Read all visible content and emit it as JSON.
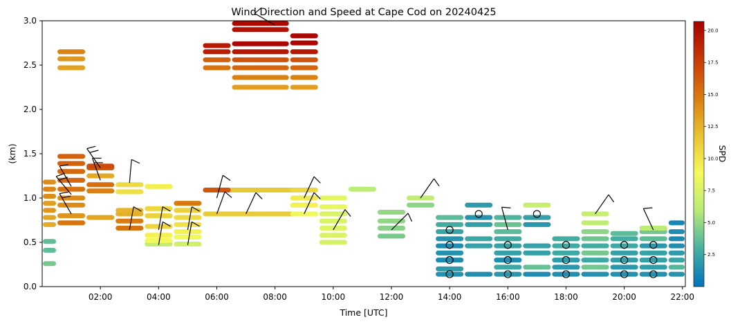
{
  "chart_data": {
    "type": "heatmap",
    "title": "Wind Direction and Speed at Cape Cod on 20240425",
    "xlabel": "Time [UTC]",
    "ylabel": "(km)",
    "colorbar_label": "SPD",
    "xlim_hours": [
      0,
      22.1
    ],
    "ylim": [
      0,
      3.0
    ],
    "x_ticks": [
      {
        "hour": 2,
        "label": "02:00"
      },
      {
        "hour": 4,
        "label": "04:00"
      },
      {
        "hour": 6,
        "label": "06:00"
      },
      {
        "hour": 8,
        "label": "08:00"
      },
      {
        "hour": 10,
        "label": "10:00"
      },
      {
        "hour": 12,
        "label": "12:00"
      },
      {
        "hour": 14,
        "label": "14:00"
      },
      {
        "hour": 16,
        "label": "16:00"
      },
      {
        "hour": 18,
        "label": "18:00"
      },
      {
        "hour": 20,
        "label": "20:00"
      },
      {
        "hour": 22,
        "label": "22:00"
      }
    ],
    "y_ticks": [
      {
        "value": 0.0,
        "label": "0.0"
      },
      {
        "value": 0.5,
        "label": "0.5"
      },
      {
        "value": 1.0,
        "label": "1.0"
      },
      {
        "value": 1.5,
        "label": "1.5"
      },
      {
        "value": 2.0,
        "label": "2.0"
      },
      {
        "value": 2.5,
        "label": "2.5"
      },
      {
        "value": 3.0,
        "label": "3.0"
      }
    ],
    "colorbar": {
      "min": 0,
      "max": 20.7,
      "colormap": [
        "#0072bd",
        "#47b0a0",
        "#b8ea78",
        "#f5f95a",
        "#e8c230",
        "#d97a10",
        "#c83a08",
        "#a80000"
      ],
      "ticks": [
        {
          "value": 2.5,
          "label": "2.5"
        },
        {
          "value": 5.0,
          "label": "5.0"
        },
        {
          "value": 7.5,
          "label": "7.5"
        },
        {
          "value": 10.0,
          "label": "10.0"
        },
        {
          "value": 12.5,
          "label": "12.5"
        },
        {
          "value": 15.0,
          "label": "15.0"
        },
        {
          "value": 17.5,
          "label": "17.5"
        },
        {
          "value": 20.0,
          "label": "20.0"
        }
      ]
    },
    "speed_columns": [
      {
        "x0": 0.0,
        "x1": 0.5,
        "cells": [
          [
            0.26,
            4.2
          ],
          [
            0.41,
            3.6
          ],
          [
            0.51,
            3.6
          ]
        ]
      },
      {
        "x0": 0.0,
        "x1": 0.5,
        "cells": [
          [
            0.7,
            12.7
          ],
          [
            0.78,
            13.0
          ],
          [
            0.86,
            13.6
          ],
          [
            0.94,
            13.3
          ],
          [
            1.02,
            14.0
          ],
          [
            1.1,
            14.3
          ],
          [
            1.18,
            14.0
          ]
        ]
      },
      {
        "x0": 0.5,
        "x1": 1.5,
        "cells": [
          [
            2.47,
            13.1
          ],
          [
            2.57,
            13.6
          ],
          [
            2.65,
            14.4
          ]
        ]
      },
      {
        "x0": 0.5,
        "x1": 1.5,
        "cells": [
          [
            0.72,
            15.0
          ],
          [
            0.8,
            13.7
          ],
          [
            0.92,
            14.0
          ],
          [
            1.0,
            14.1
          ],
          [
            1.1,
            15.2
          ],
          [
            1.2,
            15.6
          ],
          [
            1.3,
            15.5
          ],
          [
            1.39,
            15.9
          ],
          [
            1.47,
            16.0
          ]
        ]
      },
      {
        "x0": 1.5,
        "x1": 2.5,
        "cells": [
          [
            0.78,
            13.0
          ],
          [
            1.08,
            14.6
          ],
          [
            1.15,
            15.3
          ],
          [
            1.25,
            12.9
          ],
          [
            1.34,
            16.3
          ],
          [
            1.36,
            16.9
          ]
        ]
      },
      {
        "x0": 2.5,
        "x1": 3.5,
        "cells": [
          [
            0.66,
            15.1
          ],
          [
            0.74,
            14.7
          ],
          [
            0.82,
            12.6
          ],
          [
            0.86,
            12.4
          ],
          [
            1.07,
            10.2
          ],
          [
            1.15,
            10.5
          ]
        ]
      },
      {
        "x0": 3.5,
        "x1": 4.5,
        "cells": [
          [
            0.48,
            6.4
          ],
          [
            0.52,
            8.7
          ],
          [
            0.58,
            9.3
          ],
          [
            0.68,
            10.8
          ],
          [
            0.8,
            10.9
          ],
          [
            0.88,
            10.7
          ],
          [
            1.13,
            9.4
          ]
        ]
      },
      {
        "x0": 4.5,
        "x1": 5.5,
        "cells": [
          [
            0.48,
            7.1
          ],
          [
            0.56,
            8.7
          ],
          [
            0.62,
            9.3
          ],
          [
            0.7,
            10.1
          ],
          [
            0.78,
            10.5
          ],
          [
            0.86,
            11.0
          ],
          [
            0.94,
            14.8
          ]
        ]
      },
      {
        "x0": 5.5,
        "x1": 6.5,
        "cells": [
          [
            2.47,
            15.0
          ],
          [
            2.56,
            16.0
          ],
          [
            2.65,
            19.1
          ],
          [
            2.72,
            19.4
          ]
        ]
      },
      {
        "x0": 6.5,
        "x1": 8.5,
        "cells": [
          [
            2.47,
            15.7
          ],
          [
            2.56,
            16.6
          ],
          [
            2.65,
            19.5
          ],
          [
            2.74,
            20.4
          ],
          [
            2.36,
            14.5
          ],
          [
            2.25,
            13.3
          ],
          [
            2.97,
            20.3
          ],
          [
            2.9,
            19.8
          ]
        ]
      },
      {
        "x0": 8.5,
        "x1": 9.5,
        "cells": [
          [
            2.25,
            13.3
          ],
          [
            2.36,
            14.5
          ],
          [
            2.47,
            15.7
          ],
          [
            2.56,
            16.6
          ],
          [
            2.65,
            19.5
          ],
          [
            2.75,
            20.4
          ],
          [
            2.83,
            20.4
          ]
        ]
      },
      {
        "x0": 5.5,
        "x1": 9.5,
        "cells": [
          [
            0.82,
            11.3
          ],
          [
            1.09,
            11.5
          ]
        ]
      },
      {
        "x0": 5.5,
        "x1": 6.5,
        "cells": [
          [
            1.09,
            16.5
          ]
        ]
      },
      {
        "x0": 8.5,
        "x1": 9.5,
        "cells": [
          [
            0.82,
            8.7
          ],
          [
            0.92,
            9.3
          ],
          [
            1.0,
            9.6
          ],
          [
            1.09,
            10.7
          ]
        ]
      },
      {
        "x0": 9.5,
        "x1": 10.5,
        "cells": [
          [
            0.5,
            7.3
          ],
          [
            0.58,
            7.5
          ],
          [
            0.66,
            7.8
          ],
          [
            0.74,
            7.6
          ],
          [
            0.82,
            7.6
          ],
          [
            0.9,
            8.3
          ],
          [
            1.0,
            8.1
          ]
        ]
      },
      {
        "x0": 10.5,
        "x1": 11.5,
        "cells": [
          [
            1.1,
            6.1
          ]
        ]
      },
      {
        "x0": 11.5,
        "x1": 12.5,
        "cells": [
          [
            0.57,
            4.3
          ],
          [
            0.66,
            4.7
          ],
          [
            0.74,
            4.9
          ],
          [
            0.84,
            5.0
          ]
        ]
      },
      {
        "x0": 12.5,
        "x1": 13.5,
        "cells": [
          [
            0.92,
            4.8
          ],
          [
            1.0,
            6.4
          ]
        ]
      },
      {
        "x0": 13.5,
        "x1": 14.5,
        "cells": [
          [
            0.14,
            1.5
          ],
          [
            0.2,
            1.9
          ],
          [
            0.3,
            1.2
          ],
          [
            0.38,
            1.5
          ],
          [
            0.46,
            1.3
          ],
          [
            0.54,
            1.6
          ],
          [
            0.62,
            2.4
          ],
          [
            0.7,
            2.8
          ],
          [
            0.78,
            3.5
          ]
        ]
      },
      {
        "x0": 14.5,
        "x1": 15.5,
        "cells": [
          [
            0.14,
            1.4
          ],
          [
            0.46,
            2.2
          ],
          [
            0.54,
            2.5
          ],
          [
            0.7,
            2.1
          ],
          [
            0.78,
            1.6
          ],
          [
            0.92,
            1.9
          ]
        ]
      },
      {
        "x0": 15.5,
        "x1": 16.5,
        "cells": [
          [
            0.14,
            1.7
          ],
          [
            0.22,
            2.6
          ],
          [
            0.3,
            1.3
          ],
          [
            0.38,
            2.2
          ],
          [
            0.46,
            2.3
          ],
          [
            0.54,
            2.7
          ],
          [
            0.62,
            3.5
          ],
          [
            0.7,
            3.9
          ],
          [
            0.78,
            3.2
          ]
        ]
      },
      {
        "x0": 16.5,
        "x1": 17.5,
        "cells": [
          [
            0.14,
            1.3
          ],
          [
            0.22,
            3.8
          ],
          [
            0.38,
            2.2
          ],
          [
            0.46,
            2.2
          ],
          [
            0.7,
            1.7
          ],
          [
            0.78,
            2.2
          ],
          [
            0.92,
            6.7
          ]
        ]
      },
      {
        "x0": 17.5,
        "x1": 18.5,
        "cells": [
          [
            0.14,
            1.4
          ],
          [
            0.22,
            1.8
          ],
          [
            0.3,
            2.0
          ],
          [
            0.38,
            2.6
          ],
          [
            0.46,
            2.7
          ],
          [
            0.54,
            2.8
          ]
        ]
      },
      {
        "x0": 18.5,
        "x1": 19.5,
        "cells": [
          [
            0.14,
            1.5
          ],
          [
            0.22,
            4.1
          ],
          [
            0.3,
            2.6
          ],
          [
            0.38,
            4.2
          ],
          [
            0.46,
            2.8
          ],
          [
            0.54,
            4.0
          ],
          [
            0.62,
            4.8
          ],
          [
            0.72,
            6.4
          ],
          [
            0.82,
            6.7
          ]
        ]
      },
      {
        "x0": 19.5,
        "x1": 20.5,
        "cells": [
          [
            0.14,
            1.5
          ],
          [
            0.22,
            1.8
          ],
          [
            0.3,
            2.1
          ],
          [
            0.38,
            2.2
          ],
          [
            0.46,
            2.6
          ],
          [
            0.54,
            2.8
          ],
          [
            0.6,
            3.5
          ]
        ]
      },
      {
        "x0": 20.5,
        "x1": 21.5,
        "cells": [
          [
            0.14,
            1.5
          ],
          [
            0.22,
            2.1
          ],
          [
            0.3,
            2.2
          ],
          [
            0.38,
            2.3
          ],
          [
            0.46,
            1.8
          ],
          [
            0.54,
            3.5
          ],
          [
            0.62,
            4.1
          ],
          [
            0.66,
            6.1
          ]
        ]
      },
      {
        "x0": 21.5,
        "x1": 22.1,
        "cells": [
          [
            0.14,
            1.6
          ],
          [
            0.22,
            3.3
          ],
          [
            0.3,
            2.4
          ],
          [
            0.38,
            1.9
          ],
          [
            0.46,
            1.4
          ],
          [
            0.54,
            1.2
          ],
          [
            0.62,
            1.3
          ],
          [
            0.72,
            1.0
          ]
        ]
      }
    ],
    "calm_markers": [
      {
        "hour": 14,
        "alt": 0.14
      },
      {
        "hour": 14,
        "alt": 0.3
      },
      {
        "hour": 14,
        "alt": 0.47
      },
      {
        "hour": 14,
        "alt": 0.64
      },
      {
        "hour": 15,
        "alt": 0.82
      },
      {
        "hour": 16,
        "alt": 0.14
      },
      {
        "hour": 16,
        "alt": 0.3
      },
      {
        "hour": 16,
        "alt": 0.47
      },
      {
        "hour": 17,
        "alt": 0.82
      },
      {
        "hour": 18,
        "alt": 0.14
      },
      {
        "hour": 18,
        "alt": 0.3
      },
      {
        "hour": 18,
        "alt": 0.47
      },
      {
        "hour": 20,
        "alt": 0.14
      },
      {
        "hour": 20,
        "alt": 0.3
      },
      {
        "hour": 20,
        "alt": 0.47
      },
      {
        "hour": 21,
        "alt": 0.14
      },
      {
        "hour": 21,
        "alt": 0.3
      },
      {
        "hour": 21,
        "alt": 0.47
      }
    ],
    "wind_barbs": [
      {
        "hour": 1.0,
        "alt": 0.82,
        "dir_deg": 330,
        "barbs": 2
      },
      {
        "hour": 1.0,
        "alt": 1.04,
        "dir_deg": 320,
        "barbs": 2
      },
      {
        "hour": 1.0,
        "alt": 1.13,
        "dir_deg": 330,
        "barbs": 1
      },
      {
        "hour": 2.0,
        "alt": 1.34,
        "dir_deg": 325,
        "barbs": 2
      },
      {
        "hour": 2.0,
        "alt": 1.2,
        "dir_deg": 340,
        "barbs": 2
      },
      {
        "hour": 3.0,
        "alt": 1.17,
        "dir_deg": 5,
        "barbs": 1
      },
      {
        "hour": 3.0,
        "alt": 0.64,
        "dir_deg": 10,
        "barbs": 1
      },
      {
        "hour": 4.0,
        "alt": 0.47,
        "dir_deg": 10,
        "barbs": 1
      },
      {
        "hour": 4.0,
        "alt": 0.64,
        "dir_deg": 10,
        "barbs": 1
      },
      {
        "hour": 5.0,
        "alt": 0.47,
        "dir_deg": 10,
        "barbs": 1
      },
      {
        "hour": 5.0,
        "alt": 0.64,
        "dir_deg": 10,
        "barbs": 1
      },
      {
        "hour": 6.0,
        "alt": 0.82,
        "dir_deg": 20,
        "barbs": 1
      },
      {
        "hour": 6.0,
        "alt": 1.0,
        "dir_deg": 15,
        "barbs": 1
      },
      {
        "hour": 7.0,
        "alt": 0.82,
        "dir_deg": 25,
        "barbs": 1
      },
      {
        "hour": 8.0,
        "alt": 2.95,
        "dir_deg": 300,
        "barbs": 1
      },
      {
        "hour": 9.0,
        "alt": 0.82,
        "dir_deg": 25,
        "barbs": 1
      },
      {
        "hour": 9.0,
        "alt": 1.0,
        "dir_deg": 25,
        "barbs": 1
      },
      {
        "hour": 10.0,
        "alt": 0.64,
        "dir_deg": 30,
        "barbs": 1
      },
      {
        "hour": 12.0,
        "alt": 0.64,
        "dir_deg": 45,
        "barbs": 1
      },
      {
        "hour": 13.0,
        "alt": 1.0,
        "dir_deg": 35,
        "barbs": 1
      },
      {
        "hour": 16.0,
        "alt": 0.64,
        "dir_deg": 345,
        "barbs": 1
      },
      {
        "hour": 19.0,
        "alt": 0.82,
        "dir_deg": 35,
        "barbs": 1
      },
      {
        "hour": 21.0,
        "alt": 0.64,
        "dir_deg": 335,
        "barbs": 1
      }
    ]
  }
}
